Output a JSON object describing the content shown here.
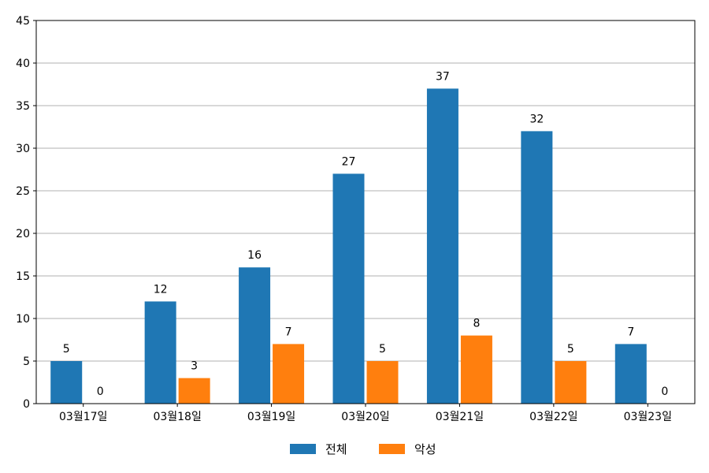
{
  "chart_data": {
    "type": "bar",
    "categories": [
      "03월17일",
      "03월18일",
      "03월19일",
      "03월20일",
      "03월21일",
      "03월22일",
      "03월23일"
    ],
    "series": [
      {
        "name": "전체",
        "color": "#1f77b4",
        "values": [
          5,
          12,
          16,
          27,
          37,
          32,
          7
        ]
      },
      {
        "name": "악성",
        "color": "#ff7f0e",
        "values": [
          0,
          3,
          7,
          5,
          8,
          5,
          0
        ]
      }
    ],
    "title": "",
    "xlabel": "",
    "ylabel": "",
    "ylim": [
      0,
      45
    ],
    "yticks": [
      0,
      5,
      10,
      15,
      20,
      25,
      30,
      35,
      40,
      45
    ],
    "grid": "horizontal",
    "legend": "bottom-center",
    "data_labels": true
  }
}
